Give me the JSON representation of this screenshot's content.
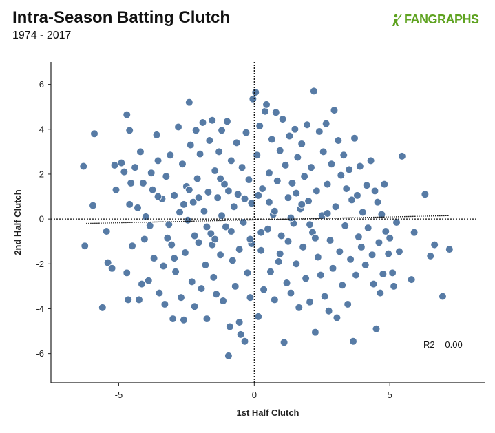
{
  "header": {
    "title": "Intra-Season Batting Clutch",
    "subtitle": "1974 - 2017",
    "logo_text": "FANGRAPHS",
    "logo_color": "#5fa321"
  },
  "annotation": {
    "r2_text": "R2 = 0.00"
  },
  "chart_data": {
    "type": "scatter",
    "title": "Intra-Season Batting Clutch",
    "subtitle": "1974 - 2017",
    "xlabel": "1st Half Clutch",
    "ylabel": "2nd Half Clutch",
    "xlim": [
      -7.5,
      8.5
    ],
    "ylim": [
      -7.3,
      7.0
    ],
    "x_ticks": [
      -5,
      0,
      5
    ],
    "y_ticks": [
      -6,
      -4,
      -2,
      0,
      2,
      4,
      6
    ],
    "point_color": "#4e74a0",
    "point_stroke": "#ffffff",
    "reference_lines": {
      "x": 0,
      "y": 0,
      "style": "dotted"
    },
    "trendline": {
      "x": [
        -6.2,
        7.2
      ],
      "y": [
        -0.2,
        0.15
      ],
      "style": "dotted"
    },
    "grid": false,
    "legend": "none",
    "points": [
      [
        -6.3,
        2.35
      ],
      [
        -6.25,
        -1.2
      ],
      [
        -5.9,
        3.8
      ],
      [
        -5.95,
        0.6
      ],
      [
        -5.6,
        -3.95
      ],
      [
        -5.45,
        -0.55
      ],
      [
        -5.4,
        -1.95
      ],
      [
        -5.25,
        -2.2
      ],
      [
        -5.15,
        2.4
      ],
      [
        -5.1,
        1.3
      ],
      [
        -4.9,
        2.5
      ],
      [
        -4.8,
        2.1
      ],
      [
        -4.7,
        4.65
      ],
      [
        -4.7,
        -2.4
      ],
      [
        -4.65,
        -3.6
      ],
      [
        -4.6,
        3.95
      ],
      [
        -4.6,
        0.65
      ],
      [
        -4.55,
        1.6
      ],
      [
        -4.5,
        -1.2
      ],
      [
        -4.4,
        2.3
      ],
      [
        -4.3,
        0.5
      ],
      [
        -4.25,
        -3.6
      ],
      [
        -4.2,
        3.0
      ],
      [
        -4.15,
        -2.9
      ],
      [
        -4.1,
        1.6
      ],
      [
        -4.05,
        -0.9
      ],
      [
        -4.0,
        0.1
      ],
      [
        -3.9,
        -2.75
      ],
      [
        -3.85,
        -0.3
      ],
      [
        -3.8,
        2.05
      ],
      [
        -3.75,
        1.3
      ],
      [
        -3.7,
        -1.75
      ],
      [
        -3.6,
        3.75
      ],
      [
        -3.55,
        2.6
      ],
      [
        -3.5,
        -3.3
      ],
      [
        -3.4,
        0.9
      ],
      [
        -3.35,
        -2.1
      ],
      [
        -3.3,
        -3.8
      ],
      [
        -3.25,
        1.9
      ],
      [
        -3.2,
        -0.85
      ],
      [
        -3.1,
        2.85
      ],
      [
        -3.05,
        -1.15
      ],
      [
        -3.0,
        -4.45
      ],
      [
        -2.95,
        1.05
      ],
      [
        -2.9,
        -2.35
      ],
      [
        -2.8,
        4.1
      ],
      [
        -2.75,
        0.3
      ],
      [
        -2.7,
        -3.5
      ],
      [
        -2.65,
        2.45
      ],
      [
        -2.6,
        -4.5
      ],
      [
        -2.55,
        -1.5
      ],
      [
        -2.5,
        1.45
      ],
      [
        -2.45,
        -0.05
      ],
      [
        -2.4,
        5.2
      ],
      [
        -2.35,
        3.3
      ],
      [
        -2.3,
        -2.8
      ],
      [
        -2.25,
        0.75
      ],
      [
        -2.2,
        -3.9
      ],
      [
        -2.15,
        3.95
      ],
      [
        -2.1,
        1.8
      ],
      [
        -2.05,
        -1.05
      ],
      [
        -2.0,
        2.9
      ],
      [
        -1.95,
        -3.1
      ],
      [
        -1.9,
        4.3
      ],
      [
        -1.85,
        0.35
      ],
      [
        -1.8,
        -2.05
      ],
      [
        -1.75,
        -4.45
      ],
      [
        -1.7,
        1.2
      ],
      [
        -1.65,
        3.5
      ],
      [
        -1.6,
        -0.65
      ],
      [
        -1.55,
        4.4
      ],
      [
        -1.5,
        -2.6
      ],
      [
        -1.45,
        2.15
      ],
      [
        -1.4,
        -3.35
      ],
      [
        -1.35,
        0.95
      ],
      [
        -1.3,
        3.0
      ],
      [
        -1.25,
        -1.6
      ],
      [
        -1.2,
        3.95
      ],
      [
        -1.15,
        -3.65
      ],
      [
        -1.1,
        1.55
      ],
      [
        -1.05,
        -0.35
      ],
      [
        -1.0,
        4.35
      ],
      [
        -0.95,
        -6.1
      ],
      [
        -0.9,
        -4.8
      ],
      [
        -0.85,
        2.6
      ],
      [
        -0.8,
        -1.85
      ],
      [
        -0.75,
        0.55
      ],
      [
        -0.7,
        -3.0
      ],
      [
        -0.65,
        3.4
      ],
      [
        -0.6,
        1.1
      ],
      [
        -0.55,
        -4.6
      ],
      [
        -0.5,
        -5.15
      ],
      [
        -0.45,
        2.3
      ],
      [
        -0.4,
        -0.15
      ],
      [
        -0.35,
        -5.45
      ],
      [
        -0.3,
        3.85
      ],
      [
        -0.25,
        -2.4
      ],
      [
        -0.2,
        1.75
      ],
      [
        -0.15,
        -3.5
      ],
      [
        -0.1,
        0.7
      ],
      [
        -0.05,
        5.35
      ],
      [
        -0.1,
        -1.1
      ],
      [
        0.05,
        5.65
      ],
      [
        0.1,
        2.85
      ],
      [
        0.15,
        -4.35
      ],
      [
        0.2,
        4.15
      ],
      [
        0.25,
        -1.4
      ],
      [
        0.3,
        1.35
      ],
      [
        0.35,
        -3.15
      ],
      [
        0.4,
        4.8
      ],
      [
        0.45,
        5.1
      ],
      [
        0.5,
        -0.45
      ],
      [
        0.55,
        2.05
      ],
      [
        0.6,
        -2.35
      ],
      [
        0.65,
        3.55
      ],
      [
        0.7,
        0.2
      ],
      [
        0.75,
        -3.6
      ],
      [
        0.8,
        4.75
      ],
      [
        0.85,
        1.7
      ],
      [
        0.9,
        -1.9
      ],
      [
        0.95,
        3.05
      ],
      [
        1.0,
        -0.75
      ],
      [
        1.05,
        4.45
      ],
      [
        1.1,
        -5.5
      ],
      [
        1.15,
        2.4
      ],
      [
        1.2,
        -2.85
      ],
      [
        1.25,
        0.95
      ],
      [
        1.3,
        3.7
      ],
      [
        1.35,
        -3.3
      ],
      [
        1.4,
        1.6
      ],
      [
        1.45,
        -0.2
      ],
      [
        1.5,
        4.0
      ],
      [
        1.55,
        -2.0
      ],
      [
        1.6,
        2.75
      ],
      [
        1.65,
        -3.95
      ],
      [
        1.7,
        0.45
      ],
      [
        1.75,
        3.35
      ],
      [
        1.8,
        -1.25
      ],
      [
        1.85,
        1.9
      ],
      [
        1.9,
        -2.65
      ],
      [
        1.95,
        4.2
      ],
      [
        2.0,
        0.8
      ],
      [
        2.05,
        -3.7
      ],
      [
        2.1,
        2.3
      ],
      [
        2.15,
        -0.6
      ],
      [
        2.2,
        5.7
      ],
      [
        2.25,
        -5.05
      ],
      [
        2.3,
        1.25
      ],
      [
        2.35,
        -1.7
      ],
      [
        2.4,
        3.9
      ],
      [
        2.45,
        -2.5
      ],
      [
        2.5,
        0.15
      ],
      [
        2.55,
        3.0
      ],
      [
        2.6,
        -3.45
      ],
      [
        2.65,
        4.25
      ],
      [
        2.7,
        1.55
      ],
      [
        2.75,
        -4.1
      ],
      [
        2.8,
        -0.95
      ],
      [
        2.85,
        2.45
      ],
      [
        2.9,
        -2.2
      ],
      [
        2.95,
        4.85
      ],
      [
        3.0,
        0.55
      ],
      [
        3.05,
        -4.4
      ],
      [
        3.1,
        3.5
      ],
      [
        3.15,
        -1.45
      ],
      [
        3.2,
        1.95
      ],
      [
        3.25,
        -2.95
      ],
      [
        3.3,
        2.85
      ],
      [
        3.35,
        -0.3
      ],
      [
        3.4,
        1.35
      ],
      [
        3.45,
        -3.8
      ],
      [
        3.5,
        2.2
      ],
      [
        3.55,
        -1.8
      ],
      [
        3.6,
        0.85
      ],
      [
        3.65,
        -5.45
      ],
      [
        3.7,
        3.6
      ],
      [
        3.75,
        -2.5
      ],
      [
        3.8,
        1.05
      ],
      [
        3.85,
        -0.8
      ],
      [
        3.9,
        2.35
      ],
      [
        3.95,
        -1.25
      ],
      [
        4.0,
        0.3
      ],
      [
        4.1,
        -2.05
      ],
      [
        4.15,
        1.5
      ],
      [
        4.2,
        -0.4
      ],
      [
        4.3,
        2.6
      ],
      [
        4.35,
        -1.6
      ],
      [
        4.4,
        -2.9
      ],
      [
        4.45,
        1.25
      ],
      [
        4.5,
        -4.9
      ],
      [
        4.55,
        0.75
      ],
      [
        4.6,
        -1.05
      ],
      [
        4.65,
        -3.3
      ],
      [
        4.7,
        0.2
      ],
      [
        4.75,
        -2.45
      ],
      [
        4.8,
        1.55
      ],
      [
        4.85,
        -0.55
      ],
      [
        4.95,
        -1.55
      ],
      [
        5.0,
        -0.85
      ],
      [
        5.1,
        -2.4
      ],
      [
        5.15,
        -3.0
      ],
      [
        5.25,
        -0.15
      ],
      [
        5.35,
        -1.45
      ],
      [
        5.45,
        2.8
      ],
      [
        5.8,
        -2.7
      ],
      [
        5.9,
        -0.6
      ],
      [
        6.3,
        1.1
      ],
      [
        6.5,
        -1.65
      ],
      [
        6.65,
        -1.15
      ],
      [
        6.95,
        -3.45
      ],
      [
        7.2,
        -1.35
      ],
      [
        -3.55,
        1.0
      ],
      [
        -2.95,
        -1.75
      ],
      [
        -2.05,
        0.95
      ],
      [
        -1.55,
        -1.15
      ],
      [
        -1.2,
        0.15
      ],
      [
        -0.85,
        -0.55
      ],
      [
        -0.35,
        0.9
      ],
      [
        0.25,
        -0.6
      ],
      [
        0.75,
        0.35
      ],
      [
        1.25,
        -1.0
      ],
      [
        1.75,
        0.65
      ],
      [
        2.25,
        -0.85
      ],
      [
        2.7,
        0.25
      ],
      [
        -1.75,
        -0.35
      ],
      [
        -1.25,
        1.8
      ],
      [
        -0.55,
        -1.35
      ],
      [
        0.15,
        1.05
      ],
      [
        0.95,
        -1.55
      ],
      [
        1.55,
        1.15
      ],
      [
        -2.6,
        0.65
      ],
      [
        -2.2,
        -0.75
      ],
      [
        -1.45,
        -0.9
      ],
      [
        -0.95,
        1.25
      ],
      [
        -0.15,
        -0.9
      ],
      [
        0.55,
        0.75
      ],
      [
        1.35,
        0.05
      ],
      [
        2.05,
        -0.25
      ],
      [
        -3.15,
        -0.25
      ],
      [
        -2.4,
        1.3
      ]
    ]
  }
}
